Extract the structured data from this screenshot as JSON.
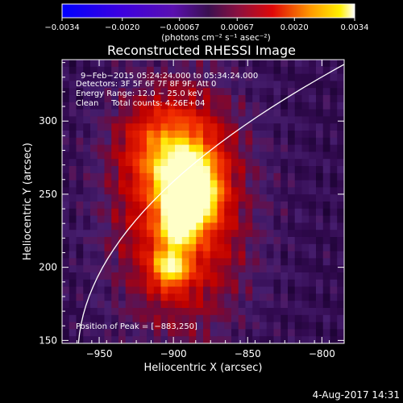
{
  "chart_data": {
    "type": "heatmap",
    "title": "Reconstructed RHESSI Image",
    "xlabel": "Heliocentric X (arcsec)",
    "ylabel": "Heliocentric Y (arcsec)",
    "xlim": [
      -975,
      -785
    ],
    "ylim": [
      148,
      342
    ],
    "x_ticks": [
      -950,
      -900,
      -850,
      -800
    ],
    "x_tick_labels": [
      "−950",
      "−900",
      "−850",
      "−800"
    ],
    "y_ticks": [
      150,
      200,
      250,
      300
    ],
    "y_tick_labels": [
      "150",
      "200",
      "250",
      "300"
    ],
    "colorbar": {
      "range": [
        -0.0034,
        0.0034
      ],
      "ticks": [
        -0.0034,
        -0.002,
        -0.00067,
        0.00067,
        0.002,
        0.0034
      ],
      "tick_labels": [
        "−0.0034",
        "−0.0020",
        "−0.00067",
        "0.00067",
        "0.0020",
        "0.0034"
      ],
      "units_label": "(photons cm⁻² s⁻¹ asec⁻²)",
      "colormap": "rainbow-purple-red-yellow-white"
    },
    "annotations": [
      "9−Feb−2015 05:24:24.000 to 05:34:24.000",
      "Detectors: 3F 5F 6F 7F 8F 9F, Att 0",
      "Energy Range: 12.0 − 25.0 keV",
      "Clean     Total counts: 4.26E+04"
    ],
    "peak_label": "Position of Peak = [−883,250]",
    "peak_position": [
      -883,
      250
    ],
    "limb_arc": {
      "visible": true
    },
    "blobs": [
      {
        "x": -888,
        "y": 248,
        "amp": 1.0,
        "sx": 11,
        "sy": 13
      },
      {
        "x": -897,
        "y": 228,
        "amp": 0.55,
        "sx": 8,
        "sy": 10
      },
      {
        "x": -902,
        "y": 200,
        "amp": 0.62,
        "sx": 8,
        "sy": 9
      },
      {
        "x": -893,
        "y": 265,
        "amp": 0.45,
        "sx": 14,
        "sy": 14
      },
      {
        "x": -905,
        "y": 285,
        "amp": 0.3,
        "sx": 22,
        "sy": 20
      },
      {
        "x": -895,
        "y": 240,
        "amp": 0.55,
        "sx": 30,
        "sy": 55
      }
    ],
    "grid": false
  },
  "footer": {
    "date": "4-Aug-2017 14:31"
  }
}
